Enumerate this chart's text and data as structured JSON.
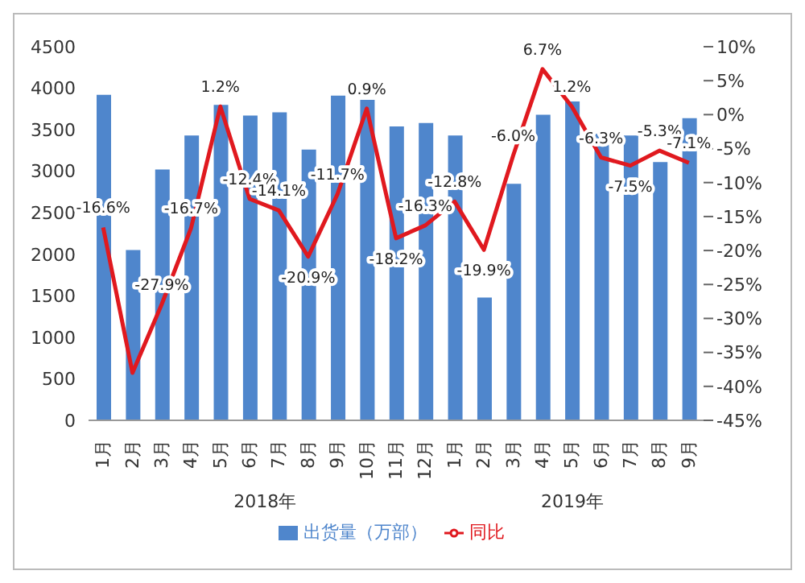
{
  "chart_data": {
    "type": "bar",
    "categories": [
      "1月",
      "2月",
      "3月",
      "4月",
      "5月",
      "6月",
      "7月",
      "8月",
      "9月",
      "10月",
      "11月",
      "12月",
      "1月",
      "2月",
      "3月",
      "4月",
      "5月",
      "6月",
      "7月",
      "8月",
      "9月"
    ],
    "series": [
      {
        "name": "出货量（万部）",
        "color": "#4f86cc",
        "values": [
          3920,
          2050,
          3020,
          3430,
          3800,
          3670,
          3710,
          3260,
          3910,
          3860,
          3540,
          3580,
          3430,
          1480,
          2850,
          3680,
          3840,
          3450,
          3430,
          3110,
          3640
        ]
      },
      {
        "name": "同比",
        "type": "line",
        "axis": "y2",
        "color": "#e0191f",
        "marker": "none",
        "values": [
          -16.6,
          -38,
          -27.9,
          -16.7,
          1.2,
          -12.4,
          -14.1,
          -20.9,
          -11.7,
          0.9,
          -18.2,
          -16.3,
          -12.8,
          -19.9,
          -6.0,
          6.7,
          1.2,
          -6.3,
          -7.5,
          -5.3,
          -7.1
        ],
        "value_labels": [
          "-16.6%",
          null,
          "-27.9%",
          "-16.7%",
          "1.2%",
          "-12.4%",
          "-14.1%",
          "-20.9%",
          "-11.7%",
          "0.9%",
          "-18.2%",
          "-16.3%",
          "-12.8%",
          "-19.9%",
          "-6.0%",
          "6.7%",
          "1.2%",
          "-6.3%",
          "-7.5%",
          "-5.3%",
          "-7.1%"
        ]
      }
    ],
    "ylim": [
      0,
      4500
    ],
    "yticks": [
      0,
      500,
      1000,
      1500,
      2000,
      2500,
      3000,
      3500,
      4000,
      4500
    ],
    "y2lim": [
      -45,
      10
    ],
    "y2ticks": [
      {
        "value": -45,
        "label": "-45%"
      },
      {
        "value": -40,
        "label": "-40%"
      },
      {
        "value": -35,
        "label": "-35%"
      },
      {
        "value": -30,
        "label": "-30%"
      },
      {
        "value": -25,
        "label": "-25%"
      },
      {
        "value": -20,
        "label": "-20%"
      },
      {
        "value": -15,
        "label": "-15%"
      },
      {
        "value": -10,
        "label": "-10%"
      },
      {
        "value": -5,
        "label": "-5%"
      },
      {
        "value": 0,
        "label": "0%"
      },
      {
        "value": 5,
        "label": "5%"
      },
      {
        "value": 10,
        "label": "10%"
      }
    ],
    "annotations": [
      "2018年",
      "2019年"
    ],
    "grid": false,
    "legend": "bottom"
  }
}
